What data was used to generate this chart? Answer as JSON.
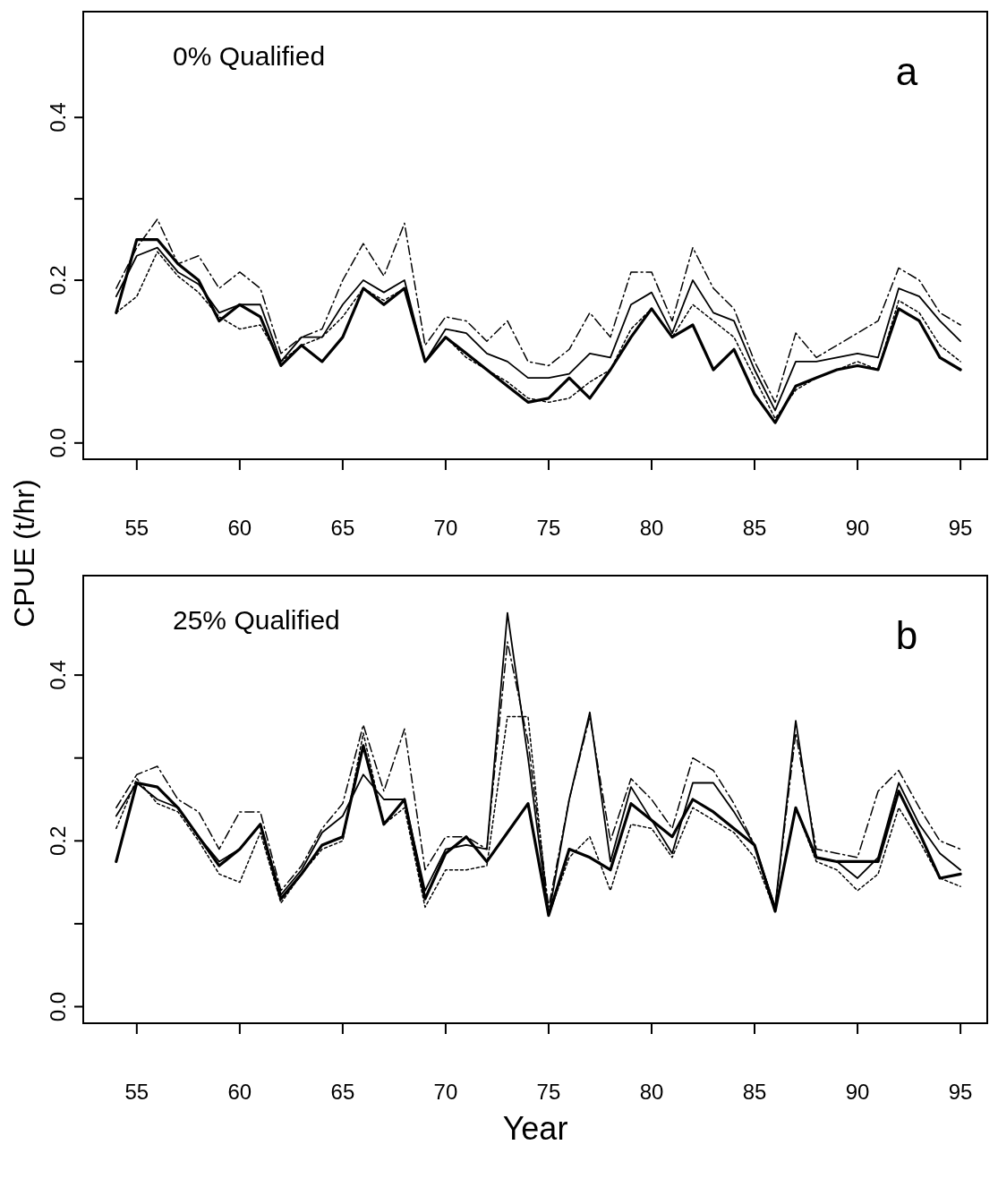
{
  "chart_data": [
    {
      "type": "line",
      "title": "0% Qualified",
      "annotations": [
        "a"
      ],
      "ylabel": "CPUE (t/hr)",
      "x": [
        54,
        55,
        56,
        57,
        58,
        59,
        60,
        61,
        62,
        63,
        64,
        65,
        66,
        67,
        68,
        69,
        70,
        71,
        72,
        73,
        74,
        75,
        76,
        77,
        78,
        79,
        80,
        81,
        82,
        83,
        84,
        85,
        86,
        87,
        88,
        89,
        90,
        91,
        92,
        93,
        94,
        95
      ],
      "xlim": [
        52.4,
        96.3
      ],
      "xticks": [
        55,
        60,
        65,
        70,
        75,
        80,
        85,
        90,
        95
      ],
      "ylim": [
        -0.02,
        0.53
      ],
      "yticks": [
        {
          "value": 0,
          "label": "0.0"
        },
        {
          "value": 0.1,
          "label": null
        },
        {
          "value": 0.2,
          "label": "0.2"
        },
        {
          "value": 0.3,
          "label": null
        },
        {
          "value": 0.4,
          "label": "0.4"
        }
      ],
      "grid": false,
      "marker": "none",
      "series": [
        {
          "color": "#000000",
          "line_style": "solid",
          "values": [
            0.16,
            0.25,
            0.25,
            0.22,
            0.2,
            0.15,
            0.17,
            0.155,
            0.095,
            0.12,
            0.1,
            0.13,
            0.19,
            0.17,
            0.19,
            0.1,
            0.13,
            0.11,
            0.09,
            0.07,
            0.05,
            0.055,
            0.08,
            0.055,
            0.09,
            0.13,
            0.165,
            0.13,
            0.145,
            0.09,
            0.115,
            0.06,
            0.025,
            0.07,
            0.08,
            0.09,
            0.095,
            0.09,
            0.165,
            0.15,
            0.105,
            0.09
          ]
        },
        {
          "color": "#000000",
          "line_style": "solid",
          "values": [
            0.18,
            0.23,
            0.24,
            0.21,
            0.195,
            0.16,
            0.17,
            0.17,
            0.1,
            0.13,
            0.13,
            0.17,
            0.2,
            0.185,
            0.2,
            0.1,
            0.14,
            0.135,
            0.11,
            0.1,
            0.08,
            0.08,
            0.085,
            0.11,
            0.105,
            0.17,
            0.185,
            0.135,
            0.2,
            0.16,
            0.15,
            0.09,
            0.04,
            0.1,
            0.1,
            0.105,
            0.11,
            0.105,
            0.19,
            0.18,
            0.15,
            0.125
          ]
        },
        {
          "color": "#000000",
          "line_style": "dashed",
          "values": [
            0.19,
            0.24,
            0.275,
            0.22,
            0.23,
            0.19,
            0.21,
            0.19,
            0.11,
            0.13,
            0.14,
            0.2,
            0.245,
            0.205,
            0.27,
            0.12,
            0.155,
            0.15,
            0.125,
            0.15,
            0.1,
            0.095,
            0.115,
            0.16,
            0.13,
            0.21,
            0.21,
            0.15,
            0.24,
            0.19,
            0.165,
            0.1,
            0.05,
            0.135,
            0.105,
            0.12,
            0.135,
            0.15,
            0.215,
            0.2,
            0.16,
            0.145
          ]
        },
        {
          "color": "#000000",
          "line_style": "dotted",
          "values": [
            0.16,
            0.18,
            0.235,
            0.205,
            0.185,
            0.155,
            0.14,
            0.145,
            0.1,
            0.12,
            0.13,
            0.155,
            0.19,
            0.175,
            0.19,
            0.1,
            0.13,
            0.105,
            0.09,
            0.075,
            0.055,
            0.05,
            0.055,
            0.075,
            0.09,
            0.14,
            0.165,
            0.13,
            0.17,
            0.15,
            0.13,
            0.08,
            0.03,
            0.065,
            0.08,
            0.09,
            0.1,
            0.09,
            0.175,
            0.16,
            0.12,
            0.1
          ]
        }
      ]
    },
    {
      "type": "line",
      "title": "25% Qualified",
      "annotations": [
        "b"
      ],
      "xlabel": "Year",
      "x": [
        54,
        55,
        56,
        57,
        58,
        59,
        60,
        61,
        62,
        63,
        64,
        65,
        66,
        67,
        68,
        69,
        70,
        71,
        72,
        73,
        74,
        75,
        76,
        77,
        78,
        79,
        80,
        81,
        82,
        83,
        84,
        85,
        86,
        87,
        88,
        89,
        90,
        91,
        92,
        93,
        94,
        95
      ],
      "xlim": [
        52.4,
        96.3
      ],
      "xticks": [
        55,
        60,
        65,
        70,
        75,
        80,
        85,
        90,
        95
      ],
      "ylim": [
        -0.02,
        0.52
      ],
      "yticks": [
        {
          "value": 0,
          "label": "0.0"
        },
        {
          "value": 0.1,
          "label": null
        },
        {
          "value": 0.2,
          "label": "0.2"
        },
        {
          "value": 0.3,
          "label": null
        },
        {
          "value": 0.4,
          "label": "0.4"
        }
      ],
      "grid": false,
      "marker": "none",
      "series": [
        {
          "color": "#000000",
          "line_style": "solid",
          "values": [
            0.175,
            0.27,
            0.265,
            0.24,
            0.205,
            0.17,
            0.19,
            0.22,
            0.13,
            0.16,
            0.195,
            0.205,
            0.315,
            0.22,
            0.25,
            0.13,
            0.185,
            0.205,
            0.175,
            0.21,
            0.245,
            0.11,
            0.19,
            0.18,
            0.165,
            0.245,
            0.225,
            0.205,
            0.25,
            0.235,
            0.215,
            0.195,
            0.115,
            0.24,
            0.18,
            0.175,
            0.175,
            0.175,
            0.26,
            0.21,
            0.155,
            0.16
          ]
        },
        {
          "color": "#000000",
          "line_style": "solid",
          "values": [
            0.23,
            0.27,
            0.25,
            0.24,
            0.205,
            0.175,
            0.19,
            0.22,
            0.135,
            0.165,
            0.21,
            0.23,
            0.28,
            0.25,
            0.25,
            0.14,
            0.19,
            0.195,
            0.19,
            0.475,
            0.3,
            0.11,
            0.25,
            0.355,
            0.175,
            0.265,
            0.225,
            0.185,
            0.27,
            0.27,
            0.235,
            0.195,
            0.12,
            0.345,
            0.18,
            0.175,
            0.155,
            0.18,
            0.27,
            0.22,
            0.185,
            0.165
          ]
        },
        {
          "color": "#000000",
          "line_style": "dashed",
          "values": [
            0.24,
            0.28,
            0.29,
            0.25,
            0.235,
            0.19,
            0.235,
            0.235,
            0.14,
            0.17,
            0.215,
            0.245,
            0.34,
            0.26,
            0.335,
            0.165,
            0.205,
            0.205,
            0.19,
            0.44,
            0.32,
            0.12,
            0.25,
            0.35,
            0.2,
            0.275,
            0.25,
            0.215,
            0.3,
            0.285,
            0.245,
            0.195,
            0.12,
            0.33,
            0.19,
            0.185,
            0.18,
            0.26,
            0.285,
            0.24,
            0.2,
            0.19
          ]
        },
        {
          "color": "#000000",
          "line_style": "dotted",
          "values": [
            0.215,
            0.275,
            0.245,
            0.235,
            0.2,
            0.16,
            0.15,
            0.21,
            0.125,
            0.16,
            0.19,
            0.2,
            0.33,
            0.22,
            0.24,
            0.12,
            0.165,
            0.165,
            0.17,
            0.35,
            0.35,
            0.11,
            0.18,
            0.205,
            0.14,
            0.22,
            0.215,
            0.18,
            0.24,
            0.225,
            0.21,
            0.18,
            0.115,
            0.24,
            0.175,
            0.165,
            0.14,
            0.16,
            0.24,
            0.2,
            0.155,
            0.145
          ]
        }
      ]
    }
  ]
}
